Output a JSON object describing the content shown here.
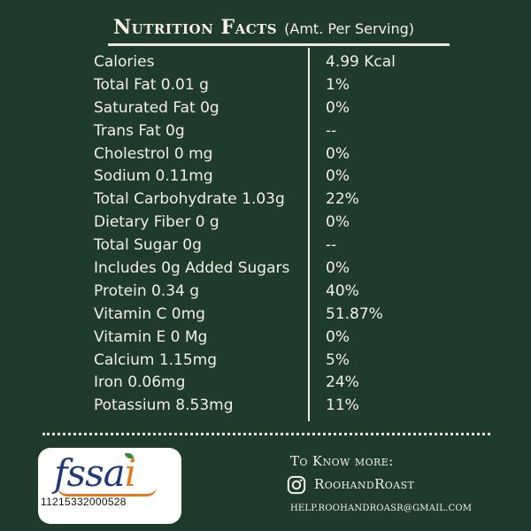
{
  "header": {
    "title": "Nutrition Facts",
    "subtitle": "(Amt. Per Serving)"
  },
  "nutrition": [
    {
      "label": "Calories",
      "value": "4.99 Kcal"
    },
    {
      "label": "Total Fat 0.01 g",
      "value": "1%"
    },
    {
      "label": "Saturated Fat 0g",
      "value": "0%"
    },
    {
      "label": "Trans Fat  0g",
      "value": "--"
    },
    {
      "label": "Cholestrol 0 mg",
      "value": "0%"
    },
    {
      "label": "Sodium 0.11mg",
      "value": "0%"
    },
    {
      "label": "Total Carbohydrate 1.03g",
      "value": "22%"
    },
    {
      "label": "Dietary Fiber 0 g",
      "value": "0%"
    },
    {
      "label": "Total Sugar 0g",
      "value": "--"
    },
    {
      "label": "Includes 0g Added Sugars",
      "value": "0%"
    },
    {
      "label": "Protein 0.34 g",
      "value": "40%"
    },
    {
      "label": "Vitamin C 0mg",
      "value": "51.87%"
    },
    {
      "label": "Vitamin E  0 Mg",
      "value": "0%"
    },
    {
      "label": "Calcium 1.15mg",
      "value": "5%"
    },
    {
      "label": "Iron 0.06mg",
      "value": "24%"
    },
    {
      "label": "Potassium 8.53mg",
      "value": "11%"
    }
  ],
  "logo": {
    "brand": "fssai",
    "license_number": "11215332000528",
    "colors": {
      "text": "#1d3a7a",
      "accent": "#e07a1c",
      "leaf": "#3e8a3a"
    }
  },
  "footer": {
    "know_more": "To Know more:",
    "instagram_icon": "instagram-icon",
    "instagram_handle": "RoohandRoast",
    "email": "HELP.ROOHANDROASR@GMAIL.COM"
  },
  "colors": {
    "background": "#1f3b2c",
    "text": "#f4efe3"
  }
}
